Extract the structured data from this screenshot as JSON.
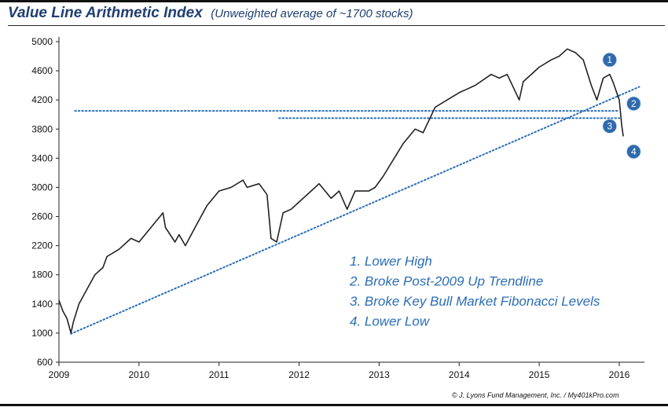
{
  "chart_data": {
    "type": "line",
    "title": "Value Line Arithmetic Index",
    "subtitle": "(Unweighted average of ~1700 stocks)",
    "xlabel": "",
    "ylabel": "",
    "xlim": [
      2009,
      2016.3
    ],
    "ylim": [
      600,
      5000
    ],
    "x_ticks": [
      "2009",
      "2010",
      "2011",
      "2012",
      "2013",
      "2014",
      "2015",
      "2016"
    ],
    "y_ticks": [
      "600",
      "1000",
      "1400",
      "1800",
      "2200",
      "2600",
      "3000",
      "3400",
      "3800",
      "4200",
      "4600",
      "5000"
    ],
    "grid": false,
    "series": [
      {
        "color": "#222222",
        "x": [
          2009.0,
          2009.05,
          2009.1,
          2009.15,
          2009.18,
          2009.25,
          2009.35,
          2009.45,
          2009.55,
          2009.6,
          2009.75,
          2009.9,
          2010.0,
          2010.15,
          2010.3,
          2010.33,
          2010.45,
          2010.5,
          2010.58,
          2010.7,
          2010.85,
          2011.0,
          2011.15,
          2011.3,
          2011.35,
          2011.5,
          2011.6,
          2011.65,
          2011.72,
          2011.8,
          2011.9,
          2012.0,
          2012.15,
          2012.25,
          2012.4,
          2012.5,
          2012.6,
          2012.7,
          2012.87,
          2012.95,
          2013.05,
          2013.3,
          2013.45,
          2013.55,
          2013.7,
          2013.85,
          2014.0,
          2014.1,
          2014.2,
          2014.4,
          2014.5,
          2014.6,
          2014.75,
          2014.8,
          2015.0,
          2015.15,
          2015.25,
          2015.35,
          2015.45,
          2015.55,
          2015.65,
          2015.72,
          2015.8,
          2015.88,
          2015.92,
          2016.0,
          2016.03,
          2016.05
        ],
        "values": [
          1450,
          1300,
          1200,
          1000,
          1150,
          1400,
          1600,
          1800,
          1900,
          2050,
          2150,
          2300,
          2250,
          2450,
          2650,
          2450,
          2250,
          2350,
          2200,
          2450,
          2750,
          2950,
          3000,
          3100,
          3000,
          3050,
          2900,
          2300,
          2250,
          2650,
          2700,
          2800,
          2950,
          3050,
          2850,
          2950,
          2700,
          2950,
          2950,
          3000,
          3150,
          3600,
          3800,
          3750,
          4100,
          4200,
          4300,
          4350,
          4400,
          4550,
          4500,
          4550,
          4200,
          4450,
          4650,
          4750,
          4800,
          4900,
          4850,
          4750,
          4400,
          4200,
          4500,
          4550,
          4450,
          4200,
          3850,
          3700
        ]
      }
    ],
    "annotation_lines": [
      {
        "kind": "horizontal-dotted",
        "x": [
          2009.2,
          2016.0
        ],
        "y": 4050
      },
      {
        "kind": "horizontal-dotted",
        "x": [
          2011.75,
          2016.0
        ],
        "y": 3950
      },
      {
        "kind": "trendline-dotted",
        "x": [
          2009.15,
          2016.25
        ],
        "y": [
          990,
          4380
        ]
      }
    ],
    "markers": [
      {
        "label": "1",
        "x": 2015.88,
        "y": 4750
      },
      {
        "label": "2",
        "x": 2016.18,
        "y": 4150
      },
      {
        "label": "3",
        "x": 2015.88,
        "y": 3840
      },
      {
        "label": "4",
        "x": 2016.18,
        "y": 3490
      }
    ],
    "legend_items": [
      "1.  Lower High",
      "2.  Broke Post-2009 Up Trendline",
      "3.  Broke Key Bull Market Fibonacci Levels",
      "4.  Lower Low"
    ],
    "credit": "© J. Lyons Fund Management, Inc. / My401kPro.com",
    "colors": {
      "title": "#1f3f73",
      "annotation": "#2a6db5",
      "badge": "#2f6aac",
      "price": "#222222"
    }
  }
}
